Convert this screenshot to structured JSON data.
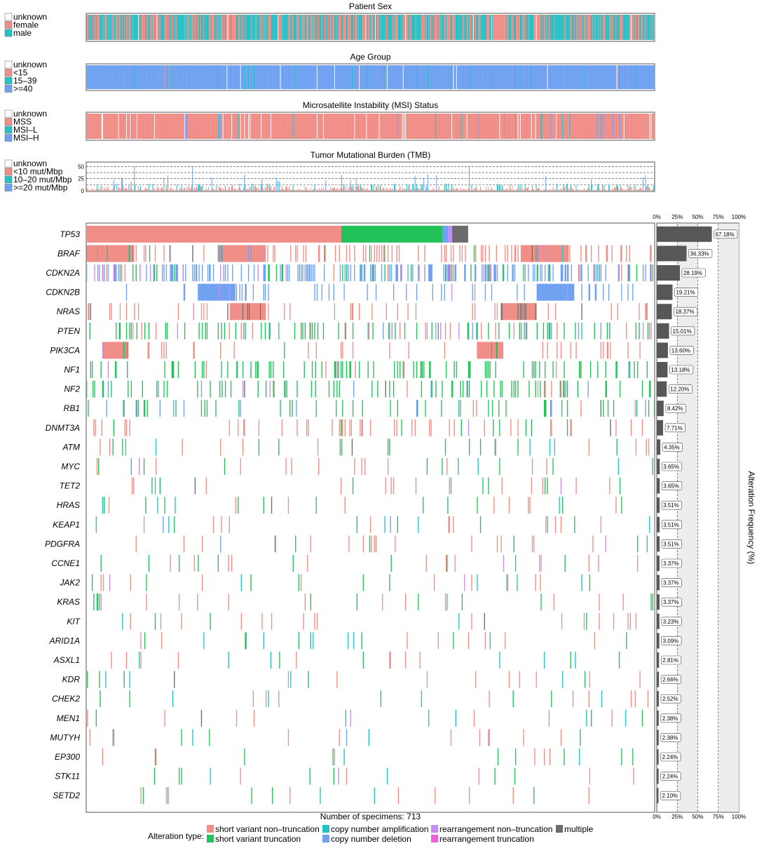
{
  "colors": {
    "unknown": "#ffffff",
    "red": "#f08d86",
    "teal": "#23c2c8",
    "blue": "#6fa0f2",
    "sv_nontrunc": "#f08d86",
    "sv_trunc": "#22c15a",
    "cn_amp": "#23c2c8",
    "cn_del": "#6fa0f2",
    "re_nontrunc": "#c38ef2",
    "re_trunc": "#f061d6",
    "multiple": "#6b6b6b",
    "bar": "#575757"
  },
  "panels": [
    {
      "id": "sex",
      "title": "Patient Sex",
      "legend": [
        "unknown",
        "female",
        "male"
      ],
      "legend_colors": [
        "#ffffff",
        "#f08d86",
        "#23c2c8"
      ],
      "composition": {
        "unknown": 0.01,
        "female": 0.55,
        "male": 0.44
      }
    },
    {
      "id": "age",
      "title": "Age Group",
      "legend": [
        "unknown",
        "<15",
        "15–39",
        ">=40"
      ],
      "legend_colors": [
        "#ffffff",
        "#f08d86",
        "#23c2c8",
        "#6fa0f2"
      ],
      "composition": {
        "unknown": 0.01,
        "<15": 0.01,
        "15–39": 0.03,
        ">=40": 0.95
      }
    },
    {
      "id": "msi",
      "title": "Microsatellite Instability (MSI) Status",
      "legend": [
        "unknown",
        "MSS",
        "MSI–L",
        "MSI–H"
      ],
      "legend_colors": [
        "#ffffff",
        "#f08d86",
        "#23c2c8",
        "#6fa0f2"
      ],
      "composition": {
        "unknown": 0.06,
        "MSS": 0.9,
        "MSI–L": 0.03,
        "MSI–H": 0.01
      }
    },
    {
      "id": "tmb",
      "title": "Tumor Mutational Burden (TMB)",
      "legend": [
        "unknown",
        "<10 mut/Mbp",
        "10–20 mut/Mbp",
        ">=20 mut/Mbp"
      ],
      "legend_colors": [
        "#ffffff",
        "#f08d86",
        "#23c2c8",
        "#6fa0f2"
      ],
      "y_ticks": [
        "0",
        "25",
        "50"
      ],
      "y_max": 55
    }
  ],
  "chart_data": {
    "type": "heatmap",
    "n_specimens": 713,
    "genes": [
      "TP53",
      "BRAF",
      "CDKN2A",
      "CDKN2B",
      "NRAS",
      "PTEN",
      "PIK3CA",
      "NF1",
      "NF2",
      "RB1",
      "DNMT3A",
      "ATM",
      "MYC",
      "TET2",
      "HRAS",
      "KEAP1",
      "PDGFRA",
      "CCNE1",
      "JAK2",
      "KRAS",
      "KIT",
      "ARID1A",
      "ASXL1",
      "KDR",
      "CHEK2",
      "MEN1",
      "MUTYH",
      "EP300",
      "STK11",
      "SETD2"
    ],
    "alteration_frequency": [
      67.18,
      36.33,
      28.19,
      19.21,
      18.37,
      15.01,
      13.6,
      13.18,
      12.2,
      8.42,
      7.71,
      4.35,
      3.65,
      3.65,
      3.51,
      3.51,
      3.51,
      3.37,
      3.37,
      3.37,
      3.23,
      3.09,
      2.81,
      2.66,
      2.52,
      2.38,
      2.38,
      2.24,
      2.24,
      2.1
    ],
    "frequency_labels": [
      "67.18%",
      "36.33%",
      "28.19%",
      "19.21%",
      "18.37%",
      "15.01%",
      "13.60%",
      "13.18%",
      "12.20%",
      "8.42%",
      "7.71%",
      "4.35%",
      "3.65%",
      "3.65%",
      "3.51%",
      "3.51%",
      "3.51%",
      "3.37%",
      "3.37%",
      "3.37%",
      "3.23%",
      "3.09%",
      "2.81%",
      "2.66%",
      "2.52%",
      "2.38%",
      "2.38%",
      "2.24%",
      "2.24%",
      "2.10%"
    ],
    "frequency_axis": {
      "label": "Alteration Frequency (%)",
      "ticks": [
        "0%",
        "25%",
        "50%",
        "75%",
        "100%"
      ],
      "max": 100
    },
    "x_label": "Number of specimens: 713",
    "legend_title": "Alteration type:",
    "alteration_types": [
      {
        "name": "short variant non–truncation",
        "color": "#f08d86"
      },
      {
        "name": "short variant truncation",
        "color": "#22c15a"
      },
      {
        "name": "copy number amplification",
        "color": "#23c2c8"
      },
      {
        "name": "copy number deletion",
        "color": "#6fa0f2"
      },
      {
        "name": "rearrangement non–truncation",
        "color": "#c38ef2"
      },
      {
        "name": "rearrangement truncation",
        "color": "#f061d6"
      },
      {
        "name": "multiple",
        "color": "#6b6b6b"
      }
    ],
    "tp53_blocks": [
      {
        "type": "short variant non–truncation",
        "start": 0,
        "end": 320
      },
      {
        "type": "short variant truncation",
        "start": 320,
        "end": 447
      },
      {
        "type": "copy number deletion",
        "start": 447,
        "end": 454
      },
      {
        "type": "rearrangement non–truncation",
        "start": 454,
        "end": 459
      },
      {
        "type": "multiple",
        "start": 459,
        "end": 479
      }
    ]
  }
}
